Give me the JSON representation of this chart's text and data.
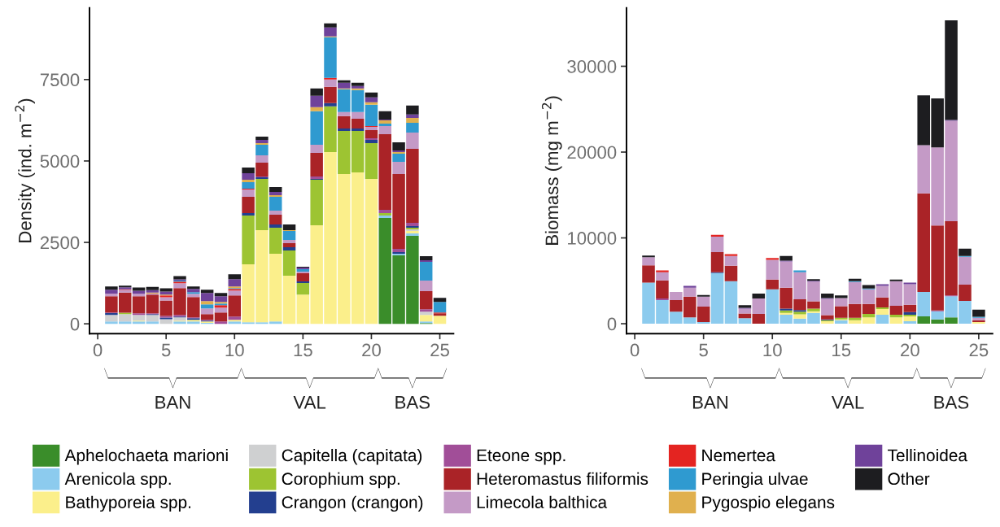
{
  "chart_data": [
    {
      "type": "bar",
      "stacked": true,
      "ylabel": "Density (ind. m$^{−2}$)",
      "x": [
        1,
        2,
        3,
        4,
        5,
        6,
        7,
        8,
        9,
        10,
        11,
        12,
        13,
        14,
        15,
        16,
        17,
        18,
        19,
        20,
        21,
        22,
        23,
        24,
        25
      ],
      "xlim": [
        -0.6,
        26
      ],
      "xticks": [
        0,
        5,
        10,
        15,
        20,
        25
      ],
      "ylim": [
        -300,
        9700
      ],
      "yticks": [
        0,
        2500,
        5000,
        7500
      ],
      "grid": false,
      "legend": "bottom",
      "annotations": [
        "BAN",
        "VAL",
        "BAS"
      ],
      "series": [
        {
          "name": "Aphelochaeta marioni",
          "color": "#3a8d2a",
          "values": [
            0,
            0,
            0,
            0,
            0,
            0,
            0,
            0,
            0,
            0,
            0,
            0,
            0,
            0,
            0,
            0,
            0,
            0,
            0,
            0,
            3250,
            2100,
            2700,
            25,
            0
          ]
        },
        {
          "name": "Arenicola spp.",
          "color": "#8ccbee",
          "values": [
            70,
            70,
            70,
            70,
            0,
            70,
            70,
            30,
            0,
            70,
            50,
            50,
            75,
            0,
            0,
            0,
            0,
            0,
            0,
            0,
            75,
            50,
            75,
            50,
            0
          ]
        },
        {
          "name": "Bathyporeia spp.",
          "color": "#fbef8b",
          "values": [
            0,
            0,
            25,
            0,
            0,
            25,
            50,
            40,
            0,
            50,
            1775,
            2825,
            2075,
            1475,
            900,
            3025,
            5275,
            4600,
            4650,
            4450,
            0,
            0,
            75,
            200,
            250
          ]
        },
        {
          "name": "Capitella (capitata)",
          "color": "#cfd0d1",
          "values": [
            200,
            230,
            175,
            200,
            140,
            100,
            0,
            0,
            0,
            null,
            0,
            0,
            0,
            0,
            0,
            0,
            0,
            0,
            0,
            0,
            0,
            0,
            50,
            100,
            0
          ]
        },
        {
          "name": "Corophium spp.",
          "color": "#9dc432",
          "values": [
            0,
            40,
            0,
            0,
            0,
            0,
            0,
            0,
            0,
            0,
            1500,
            1575,
            800,
            775,
            350,
            1400,
            1400,
            1325,
            1275,
            1100,
            75,
            0,
            50,
            0,
            0
          ]
        },
        {
          "name": "Crangon (crangon)",
          "color": "#233f8f",
          "values": [
            60,
            0,
            0,
            30,
            50,
            25,
            50,
            25,
            0,
            0,
            75,
            50,
            100,
            100,
            50,
            25,
            100,
            75,
            75,
            100,
            0,
            50,
            50,
            0,
            0
          ]
        },
        {
          "name": "Eteone spp.",
          "color": "#a14e98",
          "values": [
            20,
            0,
            50,
            20,
            50,
            50,
            25,
            25,
            75,
            100,
            0,
            25,
            0,
            0,
            0,
            75,
            0,
            0,
            0,
            50,
            100,
            100,
            100,
            75,
            0
          ]
        },
        {
          "name": "Heteromastus filiformis",
          "color": "#aa2327",
          "values": [
            500,
            620,
            525,
            580,
            475,
            825,
            625,
            175,
            275,
            650,
            500,
            425,
            300,
            125,
            250,
            725,
            500,
            375,
            300,
            250,
            2325,
            2300,
            2275,
            550,
            75
          ]
        },
        {
          "name": "Limecola balthica",
          "color": "#c49ac6",
          "values": [
            80,
            80,
            80,
            30,
            100,
            150,
            100,
            175,
            150,
            150,
            225,
            225,
            125,
            100,
            50,
            250,
            225,
            125,
            200,
            100,
            250,
            375,
            500,
            325,
            0
          ]
        },
        {
          "name": "Nemertea",
          "color": "#e42421",
          "values": [
            0,
            20,
            0,
            0,
            60,
            50,
            0,
            0,
            75,
            50,
            25,
            0,
            0,
            0,
            0,
            0,
            50,
            0,
            0,
            25,
            0,
            0,
            0,
            0,
            25
          ]
        },
        {
          "name": "Peringia ulvae",
          "color": "#2f9ad0",
          "values": [
            0,
            0,
            0,
            0,
            0,
            30,
            50,
            125,
            50,
            25,
            200,
            325,
            425,
            275,
            75,
            1025,
            1250,
            700,
            675,
            650,
            75,
            250,
            300,
            575,
            325
          ]
        },
        {
          "name": "Pygospio elegans",
          "color": "#e0b04e",
          "values": [
            0,
            0,
            0,
            30,
            25,
            0,
            0,
            100,
            50,
            50,
            75,
            50,
            50,
            25,
            0,
            125,
            25,
            25,
            50,
            75,
            100,
            50,
            150,
            0,
            0
          ]
        },
        {
          "name": "Tellinoidea",
          "color": "#6f429a",
          "values": [
            115,
            60,
            90,
            75,
            90,
            40,
            100,
            250,
            175,
            225,
            200,
            100,
            100,
            0,
            50,
            350,
            275,
            175,
            75,
            150,
            25,
            50,
            100,
            50,
            0
          ]
        },
        {
          "name": "Other",
          "color": "#1d1d20",
          "values": [
            100,
            50,
            100,
            100,
            100,
            100,
            75,
            100,
            100,
            150,
            175,
            100,
            150,
            175,
            25,
            225,
            125,
            75,
            100,
            150,
            250,
            250,
            275,
            125,
            125
          ]
        }
      ]
    },
    {
      "type": "bar",
      "stacked": true,
      "ylabel": "Biomass (mg m$^{−2}$)",
      "x": [
        1,
        2,
        3,
        4,
        5,
        6,
        7,
        8,
        9,
        10,
        11,
        12,
        13,
        14,
        15,
        16,
        17,
        18,
        19,
        20,
        21,
        22,
        23,
        24,
        25
      ],
      "xlim": [
        -0.6,
        26
      ],
      "xticks": [
        0,
        5,
        10,
        15,
        20,
        25
      ],
      "ylim": [
        -1150,
        36800
      ],
      "yticks": [
        0,
        10000,
        20000,
        30000
      ],
      "grid": false,
      "legend": "bottom",
      "annotations": [
        "BAN",
        "VAL",
        "BAS"
      ],
      "series": [
        {
          "name": "Aphelochaeta marioni",
          "color": "#3a8d2a",
          "values": [
            0,
            0,
            0,
            0,
            0,
            0,
            0,
            0,
            0,
            0,
            0,
            0,
            0,
            0,
            0,
            0,
            0,
            0,
            0,
            0,
            850,
            500,
            750,
            0,
            0
          ]
        },
        {
          "name": "Arenicola spp.",
          "color": "#8ccbee",
          "values": [
            4800,
            2750,
            1400,
            750,
            200,
            5900,
            4950,
            650,
            0,
            4000,
            1050,
            600,
            1250,
            0,
            400,
            0,
            0,
            1050,
            0,
            300,
            2850,
            950,
            2450,
            2650,
            0
          ]
        },
        {
          "name": "Bathyporeia spp.",
          "color": "#fbef8b",
          "values": [
            0,
            0,
            0,
            0,
            0,
            0,
            0,
            0,
            0,
            0,
            200,
            500,
            200,
            300,
            100,
            400,
            750,
            650,
            750,
            550,
            0,
            0,
            0,
            0,
            200
          ]
        },
        {
          "name": "Capitella (capitata)",
          "color": "#cfd0d1",
          "values": [
            null,
            0,
            0,
            0,
            0,
            0,
            0,
            0,
            0,
            0,
            0,
            0,
            0,
            0,
            0,
            0,
            0,
            0,
            0,
            0,
            0,
            0,
            0,
            0,
            0
          ]
        },
        {
          "name": "Corophium spp.",
          "color": "#9dc432",
          "values": [
            0,
            0,
            0,
            0,
            0,
            0,
            0,
            0,
            0,
            0,
            300,
            300,
            300,
            100,
            200,
            300,
            400,
            200,
            300,
            200,
            0,
            0,
            0,
            0,
            0
          ]
        },
        {
          "name": "Crangon (crangon)",
          "color": "#233f8f",
          "values": [
            0,
            0,
            0,
            0,
            0,
            100,
            0,
            0,
            0,
            0,
            200,
            200,
            0,
            100,
            0,
            0,
            0,
            0,
            0,
            300,
            0,
            0,
            0,
            0,
            0
          ]
        },
        {
          "name": "Eteone spp.",
          "color": "#a14e98",
          "values": [
            0,
            200,
            0,
            0,
            0,
            0,
            0,
            0,
            0,
            0,
            0,
            0,
            0,
            0,
            0,
            0,
            0,
            0,
            0,
            0,
            0,
            100,
            100,
            0,
            0
          ]
        },
        {
          "name": "Heteromastus filiformis",
          "color": "#aa2327",
          "values": [
            2000,
            2100,
            1350,
            2400,
            1800,
            2350,
            1800,
            550,
            1150,
            1150,
            2450,
            1250,
            850,
            500,
            1350,
            1600,
            1150,
            1150,
            1050,
            850,
            11500,
            9900,
            8650,
            1900,
            200
          ]
        },
        {
          "name": "Limecola balthica",
          "color": "#c49ac6",
          "values": [
            950,
            950,
            950,
            1050,
            1150,
            1800,
            1150,
            550,
            1800,
            2300,
            3050,
            3150,
            2300,
            1900,
            950,
            2550,
            1700,
            1350,
            2850,
            2400,
            5600,
            9100,
            11700,
            3250,
            300
          ]
        },
        {
          "name": "Nemertea",
          "color": "#e42421",
          "values": [
            0,
            200,
            0,
            0,
            0,
            200,
            200,
            0,
            0,
            200,
            0,
            0,
            0,
            0,
            0,
            0,
            0,
            0,
            0,
            0,
            0,
            0,
            0,
            0,
            0
          ]
        },
        {
          "name": "Peringia ulvae",
          "color": "#2f9ad0",
          "values": [
            0,
            0,
            0,
            0,
            0,
            0,
            0,
            0,
            0,
            0,
            0,
            200,
            0,
            0,
            0,
            100,
            100,
            0,
            0,
            0,
            0,
            0,
            0,
            100,
            100
          ]
        },
        {
          "name": "Pygospio elegans",
          "color": "#e0b04e",
          "values": [
            0,
            0,
            0,
            0,
            0,
            0,
            0,
            0,
            0,
            0,
            0,
            0,
            0,
            0,
            0,
            0,
            0,
            0,
            0,
            0,
            0,
            0,
            0,
            0,
            0
          ]
        },
        {
          "name": "Tellinoidea",
          "color": "#6f429a",
          "values": [
            0,
            0,
            0,
            200,
            0,
            0,
            0,
            100,
            0,
            0,
            100,
            0,
            100,
            100,
            0,
            0,
            0,
            200,
            0,
            200,
            0,
            0,
            100,
            0,
            0
          ]
        },
        {
          "name": "Other",
          "color": "#1d1d20",
          "values": [
            200,
            0,
            0,
            0,
            200,
            0,
            0,
            300,
            550,
            0,
            550,
            0,
            200,
            500,
            300,
            300,
            400,
            0,
            200,
            0,
            5800,
            5700,
            11600,
            850,
            850
          ]
        }
      ]
    }
  ]
}
